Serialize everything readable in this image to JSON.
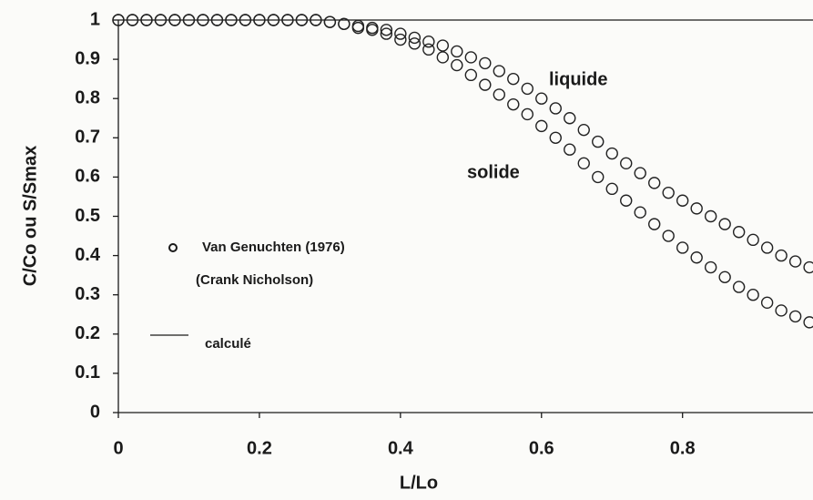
{
  "chart_data": {
    "type": "scatter",
    "xlabel": "L/Lo",
    "ylabel": "C/Co ou S/Smax",
    "x": [
      0,
      0.02,
      0.04,
      0.06,
      0.08,
      0.1,
      0.12,
      0.14,
      0.16,
      0.18,
      0.2,
      0.22,
      0.24,
      0.26,
      0.28,
      0.3,
      0.32,
      0.34,
      0.36,
      0.38,
      0.4,
      0.42,
      0.44,
      0.46,
      0.48,
      0.5,
      0.52,
      0.54,
      0.56,
      0.58,
      0.6,
      0.62,
      0.64,
      0.66,
      0.68,
      0.7,
      0.72,
      0.74,
      0.76,
      0.78,
      0.8,
      0.82,
      0.84,
      0.86,
      0.88,
      0.9,
      0.92,
      0.94,
      0.96,
      0.98
    ],
    "series": [
      {
        "name": "liquide",
        "color": "#222222",
        "values": [
          1,
          1,
          1,
          1,
          1,
          1,
          1,
          1,
          1,
          1,
          1,
          1,
          1,
          1,
          1,
          0.995,
          0.99,
          0.985,
          0.98,
          0.975,
          0.965,
          0.955,
          0.945,
          0.935,
          0.92,
          0.905,
          0.89,
          0.87,
          0.85,
          0.825,
          0.8,
          0.775,
          0.75,
          0.72,
          0.69,
          0.66,
          0.635,
          0.61,
          0.585,
          0.56,
          0.54,
          0.52,
          0.5,
          0.48,
          0.46,
          0.44,
          0.42,
          0.4,
          0.385,
          0.37
        ]
      },
      {
        "name": "solide",
        "color": "#222222",
        "values": [
          1,
          1,
          1,
          1,
          1,
          1,
          1,
          1,
          1,
          1,
          1,
          1,
          1,
          1,
          1,
          0.995,
          0.99,
          0.98,
          0.975,
          0.965,
          0.95,
          0.94,
          0.925,
          0.905,
          0.885,
          0.86,
          0.835,
          0.81,
          0.785,
          0.76,
          0.73,
          0.7,
          0.67,
          0.635,
          0.6,
          0.57,
          0.54,
          0.51,
          0.48,
          0.45,
          0.42,
          0.395,
          0.37,
          0.345,
          0.32,
          0.3,
          0.28,
          0.26,
          0.245,
          0.23
        ]
      }
    ],
    "legend": [
      "Van Genuchten (1976)",
      "(Crank Nicholson)",
      "calculé"
    ],
    "xlim": [
      0,
      0.985
    ],
    "xticks": [
      0,
      0.2,
      0.4,
      0.6,
      0.8
    ],
    "ylim": [
      0,
      1
    ],
    "yticks": [
      0,
      0.1,
      0.2,
      0.3,
      0.4,
      0.5,
      0.6,
      0.7,
      0.8,
      0.9,
      1
    ]
  }
}
